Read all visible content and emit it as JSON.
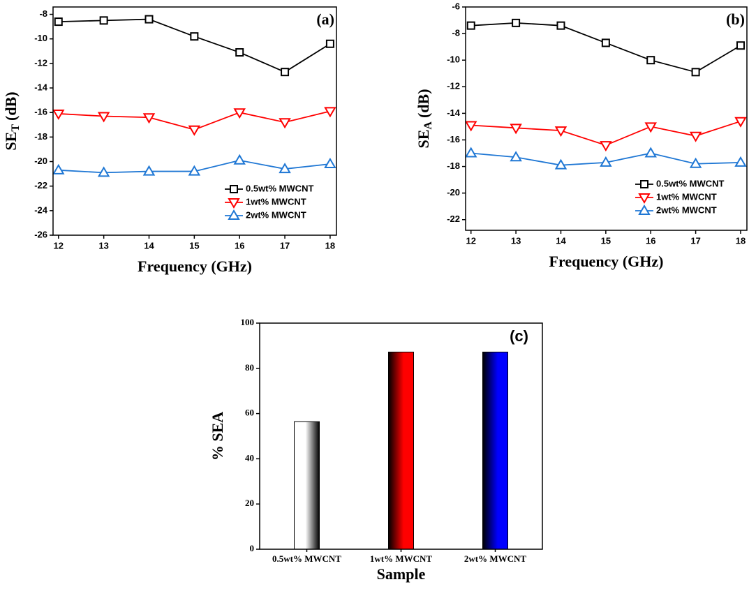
{
  "chart_data": [
    {
      "type": "line",
      "label": "(a)",
      "xlabel": "Frequency (GHz)",
      "ylabel": "SE",
      "ylabel_sub": "T",
      "ylabel_tail": "(dB)",
      "x": [
        12,
        13,
        14,
        15,
        16,
        17,
        18
      ],
      "xlim": [
        11.88,
        18.14
      ],
      "xticks": [
        12,
        13,
        14,
        15,
        16,
        17,
        18
      ],
      "ylim": [
        -26,
        -7.4
      ],
      "yticks": [
        -26,
        -24,
        -22,
        -20,
        -18,
        -16,
        -14,
        -12,
        -10,
        -8
      ],
      "legend": "lower right",
      "series": [
        {
          "name": "0.5wt% MWCNT",
          "color": "#000000",
          "marker": "square",
          "values": [
            -8.6,
            -8.5,
            -8.4,
            -9.8,
            -11.1,
            -12.7,
            -10.4
          ]
        },
        {
          "name": "1wt% MWCNT",
          "color": "#ff0000",
          "marker": "triangle-down",
          "values": [
            -16.1,
            -16.3,
            -16.4,
            -17.4,
            -16.0,
            -16.8,
            -15.9
          ]
        },
        {
          "name": "2wt% MWCNT",
          "color": "#1f77d4",
          "marker": "triangle-up",
          "values": [
            -20.7,
            -20.9,
            -20.8,
            -20.8,
            -19.9,
            -20.6,
            -20.2
          ]
        }
      ]
    },
    {
      "type": "line",
      "label": "(b)",
      "xlabel": "Frequency (GHz)",
      "ylabel": "SE",
      "ylabel_sub": "A",
      "ylabel_tail": "(dB)",
      "x": [
        12,
        13,
        14,
        15,
        16,
        17,
        18
      ],
      "xlim": [
        11.88,
        18.14
      ],
      "xticks": [
        12,
        13,
        14,
        15,
        16,
        17,
        18
      ],
      "ylim": [
        -22.8,
        -6
      ],
      "yticks": [
        -22,
        -20,
        -18,
        -16,
        -14,
        -12,
        -10,
        -8,
        -6
      ],
      "legend": "lower right",
      "series": [
        {
          "name": "0.5wt% MWCNT",
          "color": "#000000",
          "marker": "square",
          "values": [
            -7.4,
            -7.2,
            -7.4,
            -8.7,
            -10.0,
            -10.9,
            -8.9
          ]
        },
        {
          "name": "1wt% MWCNT",
          "color": "#ff0000",
          "marker": "triangle-down",
          "values": [
            -14.9,
            -15.1,
            -15.3,
            -16.4,
            -15.0,
            -15.7,
            -14.6
          ]
        },
        {
          "name": "2wt% MWCNT",
          "color": "#1f77d4",
          "marker": "triangle-up",
          "values": [
            -17.0,
            -17.3,
            -17.9,
            -17.7,
            -17.0,
            -17.8,
            -17.7
          ]
        }
      ]
    },
    {
      "type": "bar",
      "label": "(c)",
      "xlabel": "Sample",
      "ylabel": "% SEA",
      "categories": [
        "0.5wt% MWCNT",
        "1wt% MWCNT",
        "2wt% MWCNT"
      ],
      "values": [
        56.4,
        87.2,
        87.2
      ],
      "colors": [
        "#ffffff",
        "#ff0000",
        "#0000ff"
      ],
      "ylim": [
        0,
        100
      ],
      "yticks": [
        0,
        20,
        40,
        60,
        80,
        100
      ]
    }
  ]
}
